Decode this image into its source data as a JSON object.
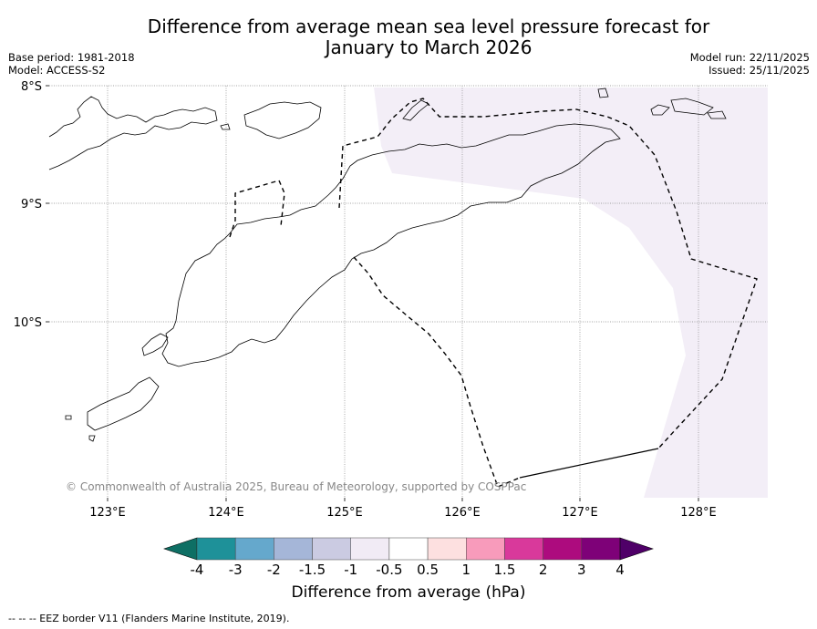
{
  "title_line1": "Difference from average mean sea level pressure forecast for",
  "title_line2": "January to March 2026",
  "base_period": "Base period: 1981-2018",
  "model": "Model: ACCESS-S2",
  "model_run": "Model run: 22/11/2025",
  "issued": "Issued: 25/11/2025",
  "lat_labels": [
    "8°S",
    "9°S",
    "10°S"
  ],
  "lon_labels": [
    "123°E",
    "124°E",
    "125°E",
    "126°E",
    "127°E",
    "128°E"
  ],
  "copyright": "© Commonwealth of Australia 2025, Bureau of Meteorology, supported by COSPPac",
  "colorbar": {
    "ticks": [
      "-4",
      "-3",
      "-2",
      "-1.5",
      "-1",
      "-0.5",
      "0.5",
      "1",
      "1.5",
      "2",
      "3",
      "4"
    ],
    "colors": [
      "#0e6f64",
      "#1e9199",
      "#65a8cc",
      "#a5b6d8",
      "#cbcbe2",
      "#f1ebf5",
      "#ffffff",
      "#fde0e0",
      "#f89bbb",
      "#d9399b",
      "#ad0b7e",
      "#7e0178",
      "#4f0068"
    ],
    "title": "Difference from average (hPa)"
  },
  "shading_color": "#f3eef7",
  "footnote": "--  --  -- EEZ border V11 (Flanders Marine Institute, 2019)."
}
